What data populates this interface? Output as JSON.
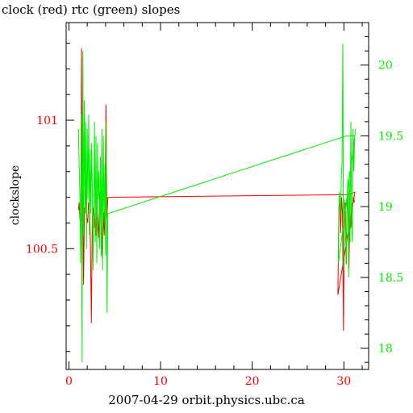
{
  "chart_data": {
    "type": "line",
    "title": "clock (red) rtc (green) slopes",
    "xlabel": "2007-04-29 orbit.physics.ubc.ca",
    "ylabel": "clockslope",
    "xlim": [
      -0.3,
      32.7
    ],
    "x_ticks": [
      0,
      10,
      20,
      30
    ],
    "x_tick_color": "#ff0000",
    "left_axis": {
      "ylim": [
        100.03,
        101.38
      ],
      "ticks": [
        100.5,
        101
      ],
      "tick_labels": [
        "100.5",
        "101"
      ],
      "color": "#ff0000"
    },
    "right_axis": {
      "ylim": [
        17.85,
        20.3
      ],
      "ticks": [
        18,
        18.5,
        19,
        19.5,
        20
      ],
      "tick_labels": [
        "18",
        "18.5",
        "19",
        "19.5",
        "20"
      ],
      "color": "#00ee00"
    },
    "series": [
      {
        "color": "#ff0000",
        "axis": "left",
        "x": [
          1.05,
          1.12,
          1.2,
          1.3,
          1.38,
          1.45,
          1.52,
          1.6,
          1.7,
          1.78,
          1.86,
          1.95,
          2.05,
          2.15,
          2.25,
          2.35,
          2.45,
          2.55,
          2.65,
          2.75,
          2.85,
          2.95,
          3.05,
          3.15,
          3.25,
          3.35,
          3.45,
          3.55,
          3.65,
          3.75,
          3.85,
          3.95,
          4.05,
          4.15,
          4.25,
          30.4,
          31.2,
          29.35,
          29.45,
          29.55,
          29.65,
          29.75,
          29.85,
          29.95,
          30.05,
          30.15,
          30.25,
          30.35,
          30.45,
          30.55,
          30.65,
          30.75,
          30.85,
          30.95,
          31.05,
          31.15
        ],
        "y": [
          100.65,
          100.68,
          100.62,
          100.58,
          101.28,
          100.55,
          100.72,
          100.36,
          100.66,
          100.64,
          100.8,
          100.62,
          100.6,
          100.68,
          100.66,
          100.52,
          100.21,
          100.62,
          100.66,
          100.58,
          100.64,
          100.55,
          100.7,
          100.6,
          100.54,
          100.72,
          100.65,
          100.58,
          100.46,
          100.64,
          100.55,
          100.66,
          101.06,
          100.62,
          100.7,
          100.71,
          100.72,
          100.32,
          100.66,
          100.68,
          100.56,
          100.7,
          100.64,
          100.18,
          100.62,
          100.68,
          100.44,
          100.7,
          100.66,
          100.42,
          100.64,
          100.58,
          100.68,
          100.66,
          100.7,
          100.68
        ]
      },
      {
        "color": "#00ee00",
        "axis": "right",
        "x": [
          1.05,
          1.12,
          1.2,
          1.28,
          1.36,
          1.44,
          1.52,
          1.6,
          1.68,
          1.76,
          1.84,
          1.92,
          2.0,
          2.08,
          2.16,
          2.24,
          2.32,
          2.4,
          2.48,
          2.56,
          2.64,
          2.72,
          2.8,
          2.88,
          2.96,
          3.04,
          3.12,
          3.2,
          3.28,
          3.36,
          3.44,
          3.52,
          3.6,
          3.68,
          3.76,
          3.84,
          3.92,
          4.0,
          4.08,
          4.16,
          4.24,
          30.3,
          31.2,
          29.4,
          29.48,
          29.56,
          29.64,
          29.72,
          29.8,
          29.88,
          29.96,
          30.04,
          30.12,
          30.2,
          30.28,
          30.36,
          30.44,
          30.52,
          30.6,
          30.68,
          30.76,
          30.84,
          30.92,
          31.0,
          31.08,
          31.16,
          31.24
        ],
        "y": [
          19.55,
          19.3,
          19.1,
          18.6,
          19.65,
          17.9,
          20.1,
          18.8,
          19.75,
          18.95,
          19.6,
          18.7,
          19.55,
          19.05,
          19.65,
          18.8,
          19.4,
          18.95,
          19.45,
          19.1,
          18.55,
          18.9,
          19.6,
          18.75,
          19.5,
          18.6,
          19.45,
          19.05,
          19.25,
          18.7,
          19.35,
          18.65,
          19.55,
          18.55,
          19.5,
          18.9,
          19.3,
          18.65,
          19.6,
          18.25,
          18.95,
          19.5,
          19.5,
          18.6,
          19.1,
          19.05,
          18.95,
          19.2,
          19.3,
          20.15,
          18.55,
          19.05,
          18.95,
          18.8,
          18.6,
          19.05,
          19.2,
          18.5,
          19.25,
          18.75,
          19.6,
          18.9,
          18.75,
          19.55,
          19.25,
          19.45,
          19.55
        ]
      }
    ],
    "grid": false,
    "legend": "none"
  }
}
